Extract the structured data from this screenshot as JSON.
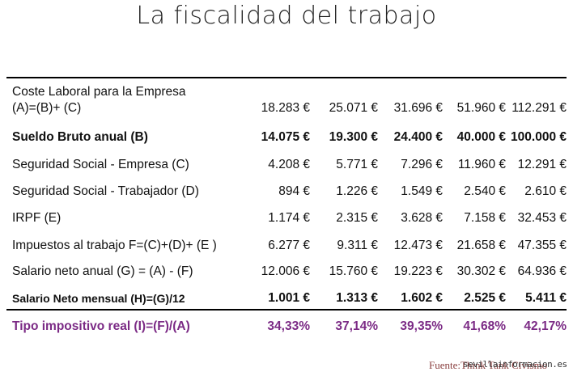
{
  "title": "La fiscalidad del trabajo",
  "table": {
    "rows": [
      {
        "label_line1": "Coste Laboral para la Empresa",
        "label_line2": "(A)=(B)+ (C)",
        "values": [
          "18.283 €",
          "25.071 €",
          "31.696 €",
          "51.960 €",
          "112.291 €"
        ]
      },
      {
        "label": "Sueldo Bruto anual (B)",
        "values": [
          "14.075 €",
          "19.300 €",
          "24.400 €",
          "40.000 €",
          "100.000 €"
        ]
      },
      {
        "label": "Seguridad Social - Empresa (C)",
        "values": [
          "4.208 €",
          "5.771 €",
          "7.296 €",
          "11.960 €",
          "12.291 €"
        ]
      },
      {
        "label": "Seguridad Social - Trabajador (D)",
        "values": [
          "894 €",
          "1.226 €",
          "1.549 €",
          "2.540 €",
          "2.610 €"
        ]
      },
      {
        "label": "IRPF (E)",
        "values": [
          "1.174 €",
          "2.315 €",
          "3.628 €",
          "7.158 €",
          "32.453 €"
        ]
      },
      {
        "label": "Impuestos al trabajo F=(C)+(D)+ (E )",
        "values": [
          "6.277 €",
          "9.311 €",
          "12.473 €",
          "21.658 €",
          "47.355 €"
        ]
      },
      {
        "label": "Salario neto anual (G) = (A) - (F)",
        "values": [
          "12.006 €",
          "15.760 €",
          "19.223 €",
          "30.302 €",
          "64.936 €"
        ]
      },
      {
        "label": "Salario Neto mensual (H)=(G)/12",
        "values": [
          "1.001 €",
          "1.313 €",
          "1.602 €",
          "2.525 €",
          "5.411 €"
        ]
      },
      {
        "label": "Tipo impositivo real (I)=(F)/(A)",
        "values": [
          "34,33%",
          "37,14%",
          "39,35%",
          "41,68%",
          "42,17%"
        ]
      }
    ]
  },
  "source": "Fuente:Think Tank Civismo",
  "watermark": "sevillainformacion.es",
  "colors": {
    "tax_row": "#7b2a85",
    "source_text": "#8a3f3f"
  }
}
